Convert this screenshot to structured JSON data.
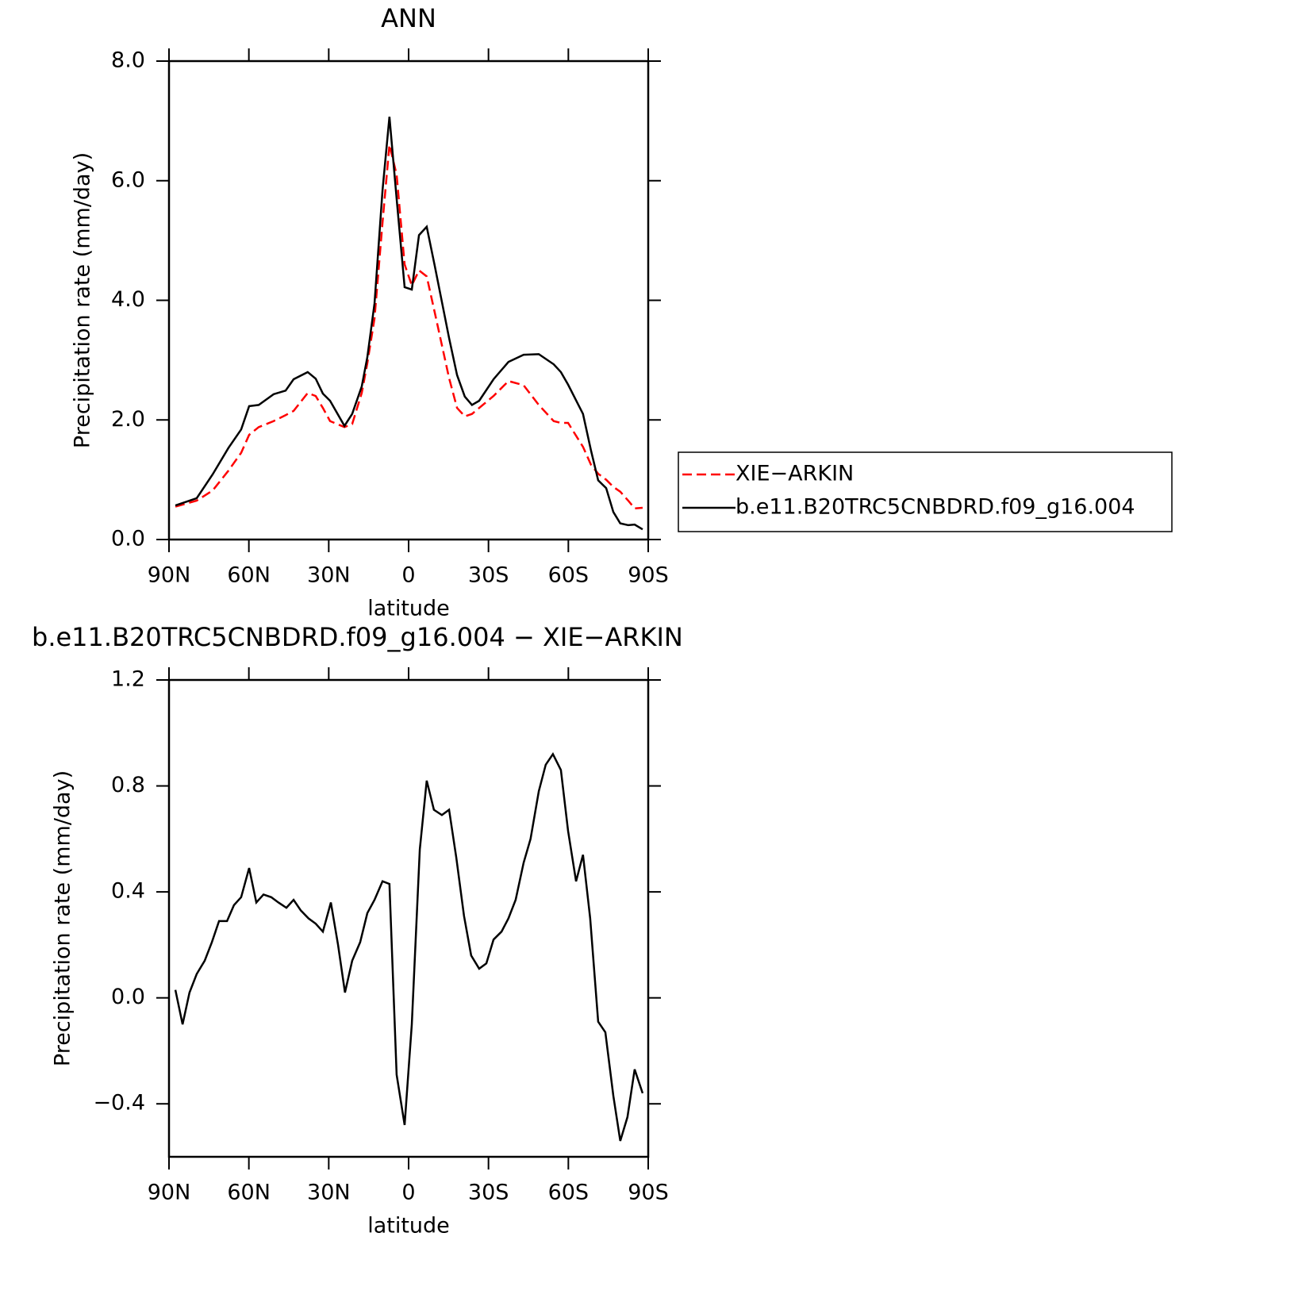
{
  "chart_data": [
    {
      "type": "line",
      "title": "ANN",
      "xlabel": "latitude",
      "ylabel": "Precipitation rate (mm/day)",
      "x": [
        87.6,
        79.6,
        73.6,
        67.7,
        62.9,
        59.9,
        56.3,
        50.7,
        46.2,
        43.2,
        37.9,
        34.9,
        32.2,
        29.5,
        24.1,
        21.2,
        17.6,
        15.5,
        12.8,
        9.8,
        7.2,
        4.5,
        1.5,
        -1.2,
        -3.9,
        -6.8,
        -9.8,
        -15.2,
        -18.2,
        -21.1,
        -23.8,
        -26.5,
        -31.9,
        -37.5,
        -43.2,
        -48.9,
        -54.5,
        -57.2,
        -59.9,
        -65.5,
        -68.5,
        -71.2,
        -74.2,
        -76.9,
        -79.5,
        -82.5,
        -84.9,
        -87.9
      ],
      "series": [
        {
          "name": "XIE−ARKIN",
          "color": "#ff0000",
          "dash": true,
          "values": [
            0.55,
            0.65,
            0.82,
            1.15,
            1.45,
            1.75,
            1.88,
            1.98,
            2.08,
            2.15,
            2.45,
            2.4,
            2.2,
            1.98,
            1.88,
            1.93,
            2.45,
            2.95,
            3.7,
            5.3,
            6.6,
            6.1,
            4.6,
            4.25,
            4.5,
            4.4,
            3.8,
            2.7,
            2.2,
            2.06,
            2.1,
            2.2,
            2.4,
            2.65,
            2.58,
            2.25,
            1.98,
            1.95,
            1.95,
            1.55,
            1.25,
            1.1,
            1.0,
            0.88,
            0.8,
            0.65,
            0.52,
            0.53
          ]
        },
        {
          "name": "b.e11.B20TRC5CNBDRD.f09_g16.004",
          "color": "#000000",
          "dash": false,
          "values": [
            0.57,
            0.69,
            1.09,
            1.53,
            1.84,
            2.23,
            2.25,
            2.43,
            2.49,
            2.68,
            2.8,
            2.69,
            2.44,
            2.32,
            1.9,
            2.1,
            2.56,
            3.05,
            3.95,
            5.84,
            7.07,
            5.7,
            4.22,
            4.18,
            5.09,
            5.23,
            4.58,
            3.37,
            2.75,
            2.39,
            2.25,
            2.32,
            2.68,
            2.97,
            3.09,
            3.1,
            2.93,
            2.8,
            2.59,
            2.1,
            1.49,
            0.99,
            0.86,
            0.46,
            0.27,
            0.24,
            0.25,
            0.17
          ]
        }
      ],
      "xlim": [
        90,
        -90
      ],
      "xticks": [
        {
          "value": 90,
          "label": "90N"
        },
        {
          "value": 60,
          "label": "60N"
        },
        {
          "value": 30,
          "label": "30N"
        },
        0,
        {
          "value": -30,
          "label": "30S"
        },
        {
          "value": -60,
          "label": "60S"
        },
        {
          "value": -90,
          "label": "90S"
        }
      ],
      "ylim": [
        0,
        8
      ],
      "yticks": [
        {
          "value": 0,
          "label": "0.0"
        },
        {
          "value": 2,
          "label": "2.0"
        },
        {
          "value": 4,
          "label": "4.0"
        },
        {
          "value": 6,
          "label": "6.0"
        },
        {
          "value": 8,
          "label": "8.0"
        }
      ],
      "legend": "outside right"
    },
    {
      "type": "line",
      "title": "b.e11.B20TRC5CNBDRD.f09_g16.004 − XIE−ARKIN",
      "xlabel": "latitude",
      "ylabel": "Precipitation rate (mm/day)",
      "x": [
        87.6,
        84.9,
        82.3,
        79.6,
        76.6,
        73.9,
        71.2,
        68.2,
        65.6,
        62.9,
        59.9,
        57.2,
        54.5,
        51.6,
        48.9,
        45.9,
        43.2,
        40.5,
        37.6,
        34.9,
        32.2,
        29.2,
        26.5,
        23.9,
        21.2,
        18.2,
        15.5,
        12.8,
        9.8,
        7.2,
        4.5,
        1.5,
        -1.2,
        -4.2,
        -6.8,
        -9.5,
        -12.5,
        -15.2,
        -17.9,
        -20.8,
        -23.5,
        -26.5,
        -29.2,
        -31.9,
        -34.9,
        -37.5,
        -40.2,
        -43.2,
        -45.8,
        -48.9,
        -51.5,
        -54.2,
        -57.2,
        -59.9,
        -62.9,
        -65.5,
        -68.2,
        -71.2,
        -73.9,
        -76.9,
        -79.5,
        -82.2,
        -84.9,
        -87.9
      ],
      "series": [
        {
          "color": "#000000",
          "values": [
            0.03,
            -0.1,
            0.02,
            0.09,
            0.14,
            0.21,
            0.29,
            0.29,
            0.35,
            0.38,
            0.49,
            0.36,
            0.39,
            0.38,
            0.36,
            0.34,
            0.37,
            0.33,
            0.3,
            0.28,
            0.25,
            0.36,
            0.2,
            0.02,
            0.14,
            0.21,
            0.32,
            0.37,
            0.44,
            0.43,
            -0.29,
            -0.48,
            -0.1,
            0.56,
            0.82,
            0.71,
            0.69,
            0.71,
            0.53,
            0.31,
            0.16,
            0.11,
            0.13,
            0.22,
            0.25,
            0.3,
            0.37,
            0.51,
            0.6,
            0.78,
            0.88,
            0.92,
            0.86,
            0.63,
            0.44,
            0.54,
            0.3,
            -0.09,
            -0.13,
            -0.37,
            -0.54,
            -0.45,
            -0.27,
            -0.36
          ]
        }
      ],
      "xlim": [
        90,
        -90
      ],
      "xticks": [
        {
          "value": 90,
          "label": "90N"
        },
        {
          "value": 60,
          "label": "60N"
        },
        {
          "value": 30,
          "label": "30N"
        },
        0,
        {
          "value": -30,
          "label": "30S"
        },
        {
          "value": -60,
          "label": "60S"
        },
        {
          "value": -90,
          "label": "90S"
        }
      ],
      "ylim": [
        -0.6,
        1.2
      ],
      "yticks": [
        {
          "value": -0.4,
          "label": "−0.4"
        },
        {
          "value": 0,
          "label": "0.0"
        },
        0.4,
        0.8,
        1.2
      ]
    }
  ]
}
